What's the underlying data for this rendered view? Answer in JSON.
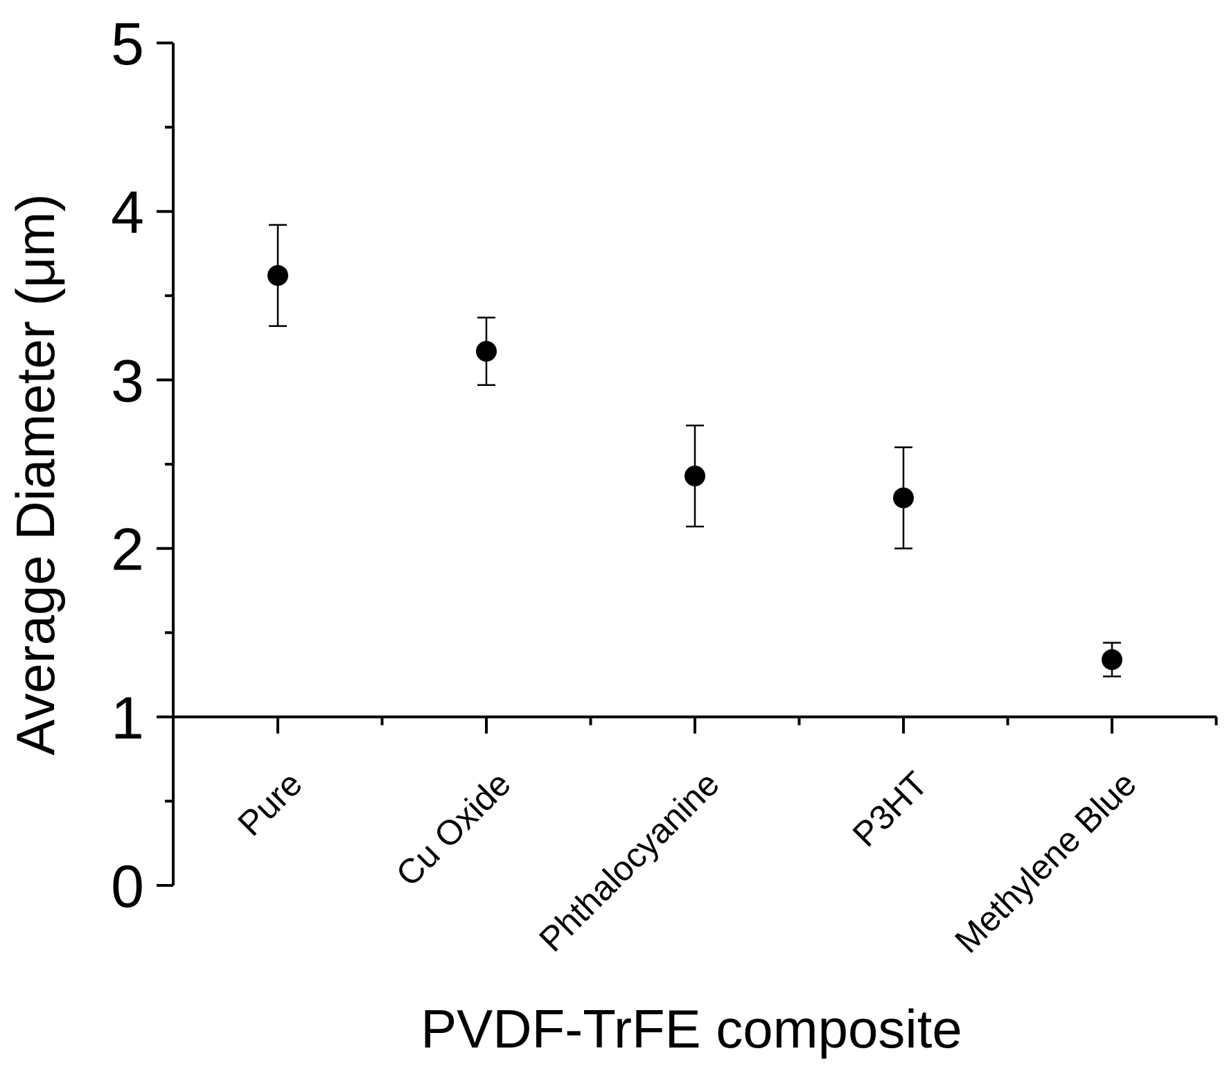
{
  "chart_data": {
    "type": "scatter",
    "title": "",
    "xlabel": "PVDF-TrFE composite",
    "ylabel": "Average Diameter (μm)",
    "categories": [
      "Pure",
      "Cu Oxide",
      "Phthalocyanine",
      "P3HT",
      "Methylene Blue"
    ],
    "series": [
      {
        "name": "Average Diameter",
        "values": [
          3.62,
          3.17,
          2.43,
          2.3,
          1.34
        ],
        "error": [
          0.3,
          0.2,
          0.3,
          0.3,
          0.1
        ],
        "marker": "circle",
        "color": "#000000"
      }
    ],
    "ylim": [
      0,
      5
    ],
    "yticks": [
      "0",
      "1",
      "2",
      "3",
      "4",
      "5"
    ],
    "x_axis_at_y": 1,
    "grid": false
  }
}
